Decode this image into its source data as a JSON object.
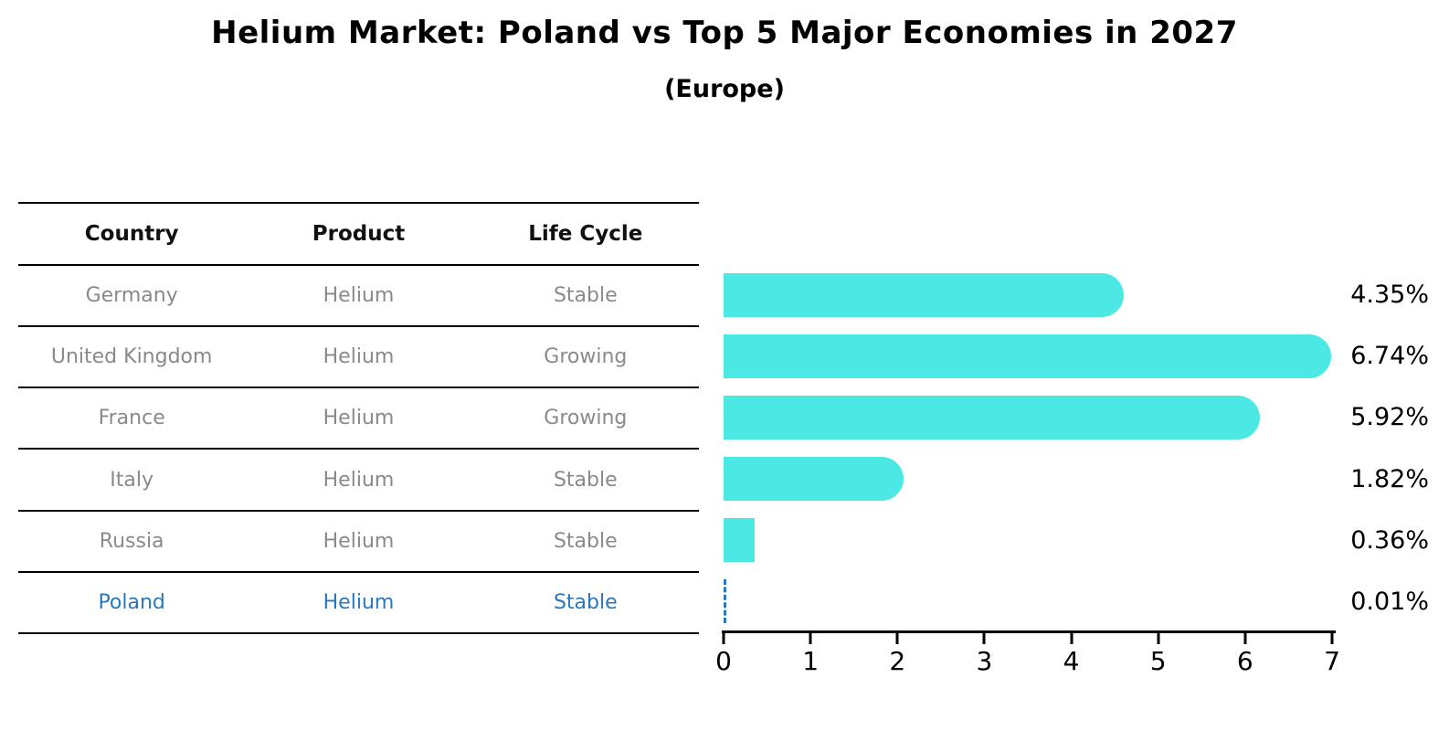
{
  "title": "Helium Market: Poland vs Top 5 Major Economies in 2027",
  "subtitle": "(Europe)",
  "table": {
    "columns": [
      "Country",
      "Product",
      "Life Cycle"
    ],
    "rows": [
      {
        "country": "Germany",
        "product": "Helium",
        "life_cycle": "Stable",
        "highlight": false
      },
      {
        "country": "United Kingdom",
        "product": "Helium",
        "life_cycle": "Growing",
        "highlight": false
      },
      {
        "country": "France",
        "product": "Helium",
        "life_cycle": "Growing",
        "highlight": false
      },
      {
        "country": "Italy",
        "product": "Helium",
        "life_cycle": "Stable",
        "highlight": false
      },
      {
        "country": "Russia",
        "product": "Helium",
        "life_cycle": "Stable",
        "highlight": false
      },
      {
        "country": "Poland",
        "product": "Helium",
        "life_cycle": "Stable",
        "highlight": true
      }
    ]
  },
  "chart_data": {
    "type": "bar",
    "orientation": "horizontal",
    "title": "Helium Market: Poland vs Top 5 Major Economies in 2027",
    "subtitle": "(Europe)",
    "categories": [
      "Germany",
      "United Kingdom",
      "France",
      "Italy",
      "Russia",
      "Poland"
    ],
    "values": [
      4.35,
      6.74,
      5.92,
      1.82,
      0.36,
      0.01
    ],
    "value_labels": [
      "4.35%",
      "6.74%",
      "5.92%",
      "1.82%",
      "0.36%",
      "0.01%"
    ],
    "xlim": [
      0,
      7
    ],
    "xticks": [
      "0",
      "1",
      "2",
      "3",
      "4",
      "5",
      "6",
      "7"
    ],
    "grid": false,
    "legend": false,
    "bar_color": "#4BE8E4",
    "highlight_index": 5,
    "highlight_bar_style": "dashed-blue-outline",
    "highlight_color": "#2878BE"
  },
  "colors": {
    "background": "#FFFFFF",
    "bar": "#4BE8E4",
    "highlight_blue": "#2878BE",
    "table_text": "#8A8A8A",
    "header_text": "#111111",
    "axis_line": "#000000"
  }
}
